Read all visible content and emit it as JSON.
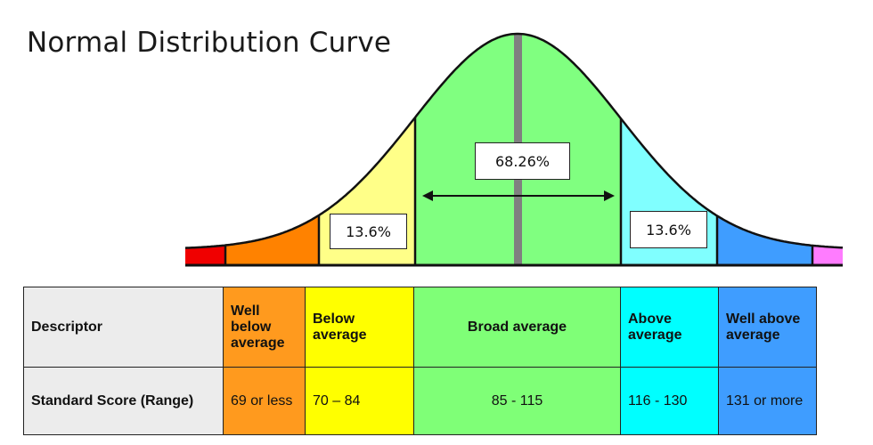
{
  "title": "Normal Distribution Curve",
  "curve": {
    "center_label": "68.26%",
    "left_label": "13.6%",
    "right_label": "13.6%",
    "colors": {
      "red": "#f00000",
      "orange": "#ff8200",
      "yellow": "#ffff88",
      "green": "#80ff80",
      "cyan": "#80ffff",
      "blue": "#3f9dff",
      "pink": "#ff7cff",
      "mean_line": "#808080"
    }
  },
  "table": {
    "row1": {
      "header": "Descriptor",
      "well_below": "Well below average",
      "below": "Below average",
      "broad": "Broad average",
      "above": "Above average",
      "well_above": "Well above average"
    },
    "row2": {
      "header": "Standard Score (Range)",
      "well_below": "69 or less",
      "below": "70 – 84",
      "broad": "85 - 115",
      "above": "116 - 130",
      "well_above": "131 or more"
    }
  }
}
